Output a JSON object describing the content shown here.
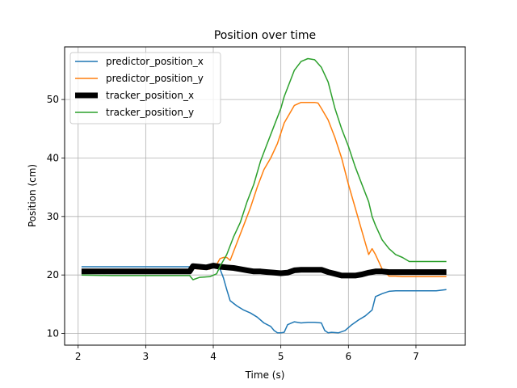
{
  "chart_data": {
    "type": "line",
    "title": "Position over time",
    "xlabel": "Time (s)",
    "ylabel": "Position (cm)",
    "xlim": [
      1.8,
      7.73
    ],
    "ylim": [
      8,
      59
    ],
    "xticks": [
      2,
      3,
      4,
      5,
      6,
      7
    ],
    "yticks": [
      10,
      20,
      30,
      40,
      50
    ],
    "grid": true,
    "legend": "top-left",
    "series": [
      {
        "name": "predictor_position_x",
        "color": "#1f77b4",
        "width": 1.5,
        "points": [
          [
            2.05,
            21.4
          ],
          [
            2.5,
            21.4
          ],
          [
            3.0,
            21.4
          ],
          [
            3.5,
            21.4
          ],
          [
            3.65,
            21.4
          ],
          [
            3.7,
            21.5
          ],
          [
            3.8,
            21.3
          ],
          [
            3.9,
            21.4
          ],
          [
            4.0,
            21.4
          ],
          [
            4.1,
            21.0
          ],
          [
            4.15,
            19.5
          ],
          [
            4.2,
            17.5
          ],
          [
            4.25,
            15.6
          ],
          [
            4.35,
            14.7
          ],
          [
            4.45,
            14.0
          ],
          [
            4.55,
            13.5
          ],
          [
            4.65,
            12.8
          ],
          [
            4.75,
            11.8
          ],
          [
            4.85,
            11.2
          ],
          [
            4.9,
            10.5
          ],
          [
            4.95,
            10.1
          ],
          [
            5.0,
            10.1
          ],
          [
            5.05,
            10.2
          ],
          [
            5.1,
            11.5
          ],
          [
            5.2,
            12.0
          ],
          [
            5.3,
            11.8
          ],
          [
            5.4,
            11.9
          ],
          [
            5.5,
            11.9
          ],
          [
            5.6,
            11.8
          ],
          [
            5.65,
            10.5
          ],
          [
            5.7,
            10.1
          ],
          [
            5.75,
            10.2
          ],
          [
            5.85,
            10.1
          ],
          [
            5.95,
            10.5
          ],
          [
            6.05,
            11.5
          ],
          [
            6.15,
            12.3
          ],
          [
            6.25,
            13.0
          ],
          [
            6.35,
            14.0
          ],
          [
            6.4,
            16.3
          ],
          [
            6.5,
            16.8
          ],
          [
            6.6,
            17.2
          ],
          [
            6.7,
            17.3
          ],
          [
            6.9,
            17.3
          ],
          [
            7.1,
            17.3
          ],
          [
            7.3,
            17.3
          ],
          [
            7.45,
            17.5
          ]
        ]
      },
      {
        "name": "predictor_position_y",
        "color": "#ff7f0e",
        "width": 1.5,
        "points": [
          [
            3.65,
            21.2
          ],
          [
            3.8,
            21.0
          ],
          [
            3.95,
            21.0
          ],
          [
            4.05,
            21.8
          ],
          [
            4.1,
            22.8
          ],
          [
            4.15,
            23.0
          ],
          [
            4.2,
            23.0
          ],
          [
            4.25,
            22.5
          ],
          [
            4.35,
            25.5
          ],
          [
            4.45,
            28.5
          ],
          [
            4.55,
            31.5
          ],
          [
            4.65,
            35.0
          ],
          [
            4.75,
            38.0
          ],
          [
            4.85,
            40.0
          ],
          [
            4.95,
            42.5
          ],
          [
            5.05,
            46.0
          ],
          [
            5.15,
            48.0
          ],
          [
            5.2,
            49.0
          ],
          [
            5.3,
            49.5
          ],
          [
            5.4,
            49.5
          ],
          [
            5.5,
            49.5
          ],
          [
            5.55,
            49.4
          ],
          [
            5.6,
            48.5
          ],
          [
            5.7,
            46.5
          ],
          [
            5.8,
            43.5
          ],
          [
            5.9,
            40.0
          ],
          [
            6.0,
            35.5
          ],
          [
            6.1,
            31.5
          ],
          [
            6.2,
            27.5
          ],
          [
            6.3,
            23.5
          ],
          [
            6.35,
            24.5
          ],
          [
            6.4,
            23.5
          ],
          [
            6.5,
            21.0
          ],
          [
            6.6,
            19.8
          ],
          [
            6.7,
            19.8
          ],
          [
            6.8,
            19.7
          ],
          [
            7.0,
            19.7
          ],
          [
            7.2,
            19.7
          ],
          [
            7.45,
            19.7
          ]
        ]
      },
      {
        "name": "tracker_position_x",
        "color": "#000000",
        "width": 7,
        "points": [
          [
            2.05,
            20.6
          ],
          [
            2.5,
            20.6
          ],
          [
            3.0,
            20.6
          ],
          [
            3.5,
            20.6
          ],
          [
            3.65,
            20.6
          ],
          [
            3.7,
            21.5
          ],
          [
            3.8,
            21.4
          ],
          [
            3.9,
            21.3
          ],
          [
            4.0,
            21.6
          ],
          [
            4.1,
            21.4
          ],
          [
            4.2,
            21.3
          ],
          [
            4.3,
            21.2
          ],
          [
            4.4,
            21.0
          ],
          [
            4.5,
            20.8
          ],
          [
            4.6,
            20.6
          ],
          [
            4.7,
            20.6
          ],
          [
            4.8,
            20.5
          ],
          [
            4.9,
            20.4
          ],
          [
            5.0,
            20.3
          ],
          [
            5.1,
            20.4
          ],
          [
            5.2,
            20.8
          ],
          [
            5.3,
            20.9
          ],
          [
            5.4,
            20.9
          ],
          [
            5.5,
            20.9
          ],
          [
            5.6,
            20.9
          ],
          [
            5.7,
            20.5
          ],
          [
            5.8,
            20.2
          ],
          [
            5.9,
            19.9
          ],
          [
            6.0,
            19.9
          ],
          [
            6.1,
            19.9
          ],
          [
            6.2,
            20.1
          ],
          [
            6.3,
            20.4
          ],
          [
            6.4,
            20.6
          ],
          [
            6.5,
            20.6
          ],
          [
            6.6,
            20.5
          ],
          [
            6.8,
            20.5
          ],
          [
            7.0,
            20.5
          ],
          [
            7.2,
            20.5
          ],
          [
            7.45,
            20.5
          ]
        ]
      },
      {
        "name": "tracker_position_y",
        "color": "#2ca02c",
        "width": 1.5,
        "points": [
          [
            2.05,
            20.0
          ],
          [
            2.5,
            19.9
          ],
          [
            3.0,
            19.9
          ],
          [
            3.5,
            19.9
          ],
          [
            3.65,
            19.9
          ],
          [
            3.7,
            19.2
          ],
          [
            3.8,
            19.6
          ],
          [
            3.95,
            19.7
          ],
          [
            4.05,
            20.2
          ],
          [
            4.1,
            21.5
          ],
          [
            4.15,
            22.5
          ],
          [
            4.2,
            23.5
          ],
          [
            4.3,
            26.5
          ],
          [
            4.4,
            29.0
          ],
          [
            4.5,
            32.5
          ],
          [
            4.6,
            35.5
          ],
          [
            4.7,
            39.5
          ],
          [
            4.8,
            42.5
          ],
          [
            4.9,
            45.5
          ],
          [
            5.0,
            48.5
          ],
          [
            5.05,
            50.5
          ],
          [
            5.1,
            52.0
          ],
          [
            5.2,
            55.0
          ],
          [
            5.3,
            56.5
          ],
          [
            5.4,
            57.0
          ],
          [
            5.5,
            56.8
          ],
          [
            5.6,
            55.5
          ],
          [
            5.7,
            53.0
          ],
          [
            5.8,
            48.5
          ],
          [
            5.9,
            45.0
          ],
          [
            6.0,
            42.0
          ],
          [
            6.1,
            38.5
          ],
          [
            6.2,
            35.5
          ],
          [
            6.3,
            32.5
          ],
          [
            6.35,
            30.0
          ],
          [
            6.4,
            28.5
          ],
          [
            6.5,
            26.0
          ],
          [
            6.6,
            24.5
          ],
          [
            6.7,
            23.5
          ],
          [
            6.8,
            23.0
          ],
          [
            6.9,
            22.3
          ],
          [
            7.0,
            22.3
          ],
          [
            7.2,
            22.3
          ],
          [
            7.45,
            22.3
          ]
        ]
      }
    ]
  }
}
